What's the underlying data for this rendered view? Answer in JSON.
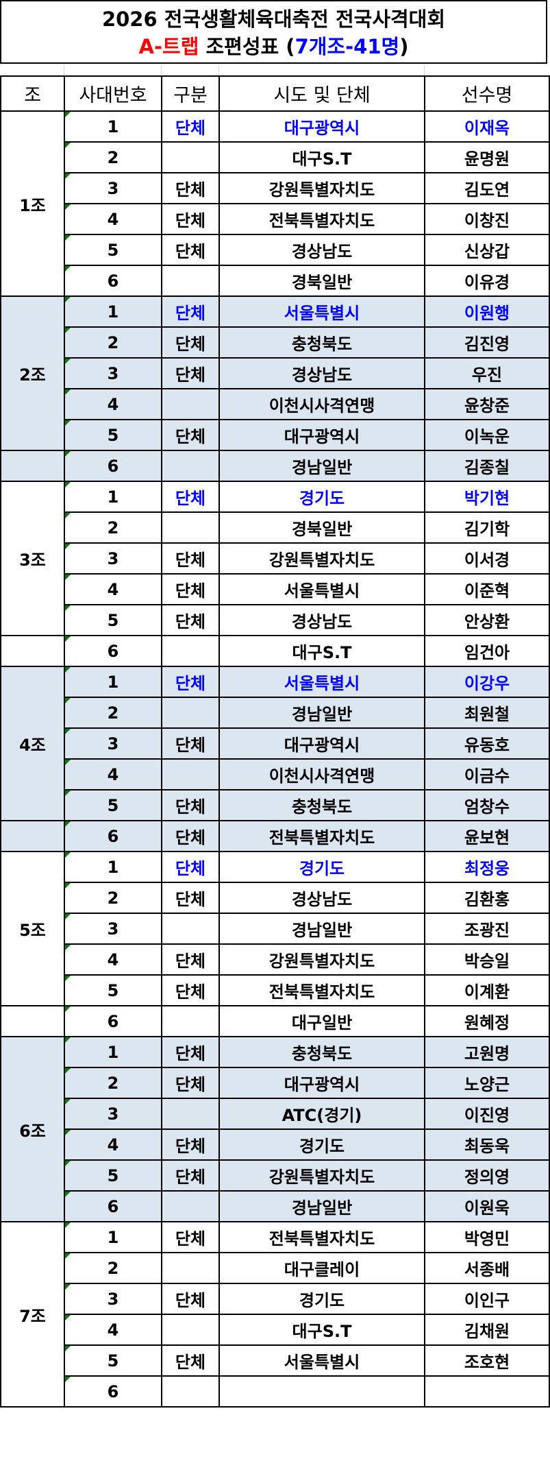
{
  "title": {
    "line1": "2026 전국생활체육대축전 전국사격대회",
    "line2_red": "A-트랩",
    "line2_mid": " 조편성표 (",
    "line2_blue": "7개조-41명",
    "line2_end": ")"
  },
  "colors": {
    "highlight_text": "#0000ff",
    "shade": "#dce6f1",
    "title_red": "#ff0000"
  },
  "headers": [
    "조",
    "사대번호",
    "구분",
    "시도 및 단체",
    "선수명"
  ],
  "groups": [
    {
      "label": "1조",
      "shaded": false,
      "last_separate": false,
      "rows": [
        [
          "1",
          "단체",
          "대구광역시",
          "이재옥",
          true
        ],
        [
          "2",
          "",
          "대구S.T",
          "윤명원",
          false
        ],
        [
          "3",
          "단체",
          "강원특별자치도",
          "김도연",
          false
        ],
        [
          "4",
          "단체",
          "전북특별자치도",
          "이창진",
          false
        ],
        [
          "5",
          "단체",
          "경상남도",
          "신상갑",
          false
        ],
        [
          "6",
          "",
          "경북일반",
          "이유경",
          false
        ]
      ]
    },
    {
      "label": "2조",
      "shaded": true,
      "last_separate": true,
      "rows": [
        [
          "1",
          "단체",
          "서울특별시",
          "이원행",
          true
        ],
        [
          "2",
          "단체",
          "충청북도",
          "김진영",
          false
        ],
        [
          "3",
          "단체",
          "경상남도",
          "우진",
          false
        ],
        [
          "4",
          "",
          "이천시사격연맹",
          "윤창준",
          false
        ],
        [
          "5",
          "단체",
          "대구광역시",
          "이녹운",
          false
        ],
        [
          "6",
          "",
          "경남일반",
          "김종칠",
          false
        ]
      ]
    },
    {
      "label": "3조",
      "shaded": false,
      "last_separate": true,
      "rows": [
        [
          "1",
          "단체",
          "경기도",
          "박기현",
          true
        ],
        [
          "2",
          "",
          "경북일반",
          "김기학",
          false
        ],
        [
          "3",
          "단체",
          "강원특별자치도",
          "이서경",
          false
        ],
        [
          "4",
          "단체",
          "서울특별시",
          "이준혁",
          false
        ],
        [
          "5",
          "단체",
          "경상남도",
          "안상환",
          false
        ],
        [
          "6",
          "",
          "대구S.T",
          "임건아",
          false
        ]
      ]
    },
    {
      "label": "4조",
      "shaded": true,
      "last_separate": true,
      "rows": [
        [
          "1",
          "단체",
          "서울특별시",
          "이강우",
          true
        ],
        [
          "2",
          "",
          "경남일반",
          "최원철",
          false
        ],
        [
          "3",
          "단체",
          "대구광역시",
          "유동호",
          false
        ],
        [
          "4",
          "",
          "이천시사격연맹",
          "이금수",
          false
        ],
        [
          "5",
          "단체",
          "충청북도",
          "엄창수",
          false
        ],
        [
          "6",
          "단체",
          "전북특별자치도",
          "윤보현",
          false
        ]
      ]
    },
    {
      "label": "5조",
      "shaded": false,
      "last_separate": true,
      "rows": [
        [
          "1",
          "단체",
          "경기도",
          "최정웅",
          true
        ],
        [
          "2",
          "단체",
          "경상남도",
          "김환홍",
          false
        ],
        [
          "3",
          "",
          "경남일반",
          "조광진",
          false
        ],
        [
          "4",
          "단체",
          "강원특별자치도",
          "박승일",
          false
        ],
        [
          "5",
          "단체",
          "전북특별자치도",
          "이계환",
          false
        ],
        [
          "6",
          "",
          "대구일반",
          "원혜정",
          false
        ]
      ]
    },
    {
      "label": "6조",
      "shaded": true,
      "last_separate": false,
      "rows": [
        [
          "1",
          "단체",
          "충청북도",
          "고원명",
          false
        ],
        [
          "2",
          "단체",
          "대구광역시",
          "노양근",
          false
        ],
        [
          "3",
          "",
          "ATC(경기)",
          "이진영",
          false
        ],
        [
          "4",
          "단체",
          "경기도",
          "최동욱",
          false
        ],
        [
          "5",
          "단체",
          "강원특별자치도",
          "정의영",
          false
        ],
        [
          "6",
          "",
          "경남일반",
          "이원욱",
          false
        ]
      ]
    },
    {
      "label": "7조",
      "shaded": false,
      "last_separate": false,
      "rows": [
        [
          "1",
          "단체",
          "전북특별자치도",
          "박영민",
          false
        ],
        [
          "2",
          "",
          "대구클레이",
          "서종배",
          false
        ],
        [
          "3",
          "단체",
          "경기도",
          "이인구",
          false
        ],
        [
          "4",
          "",
          "대구S.T",
          "김채원",
          false
        ],
        [
          "5",
          "단체",
          "서울특별시",
          "조호현",
          false
        ],
        [
          "6",
          "",
          "",
          "",
          false
        ]
      ]
    }
  ]
}
